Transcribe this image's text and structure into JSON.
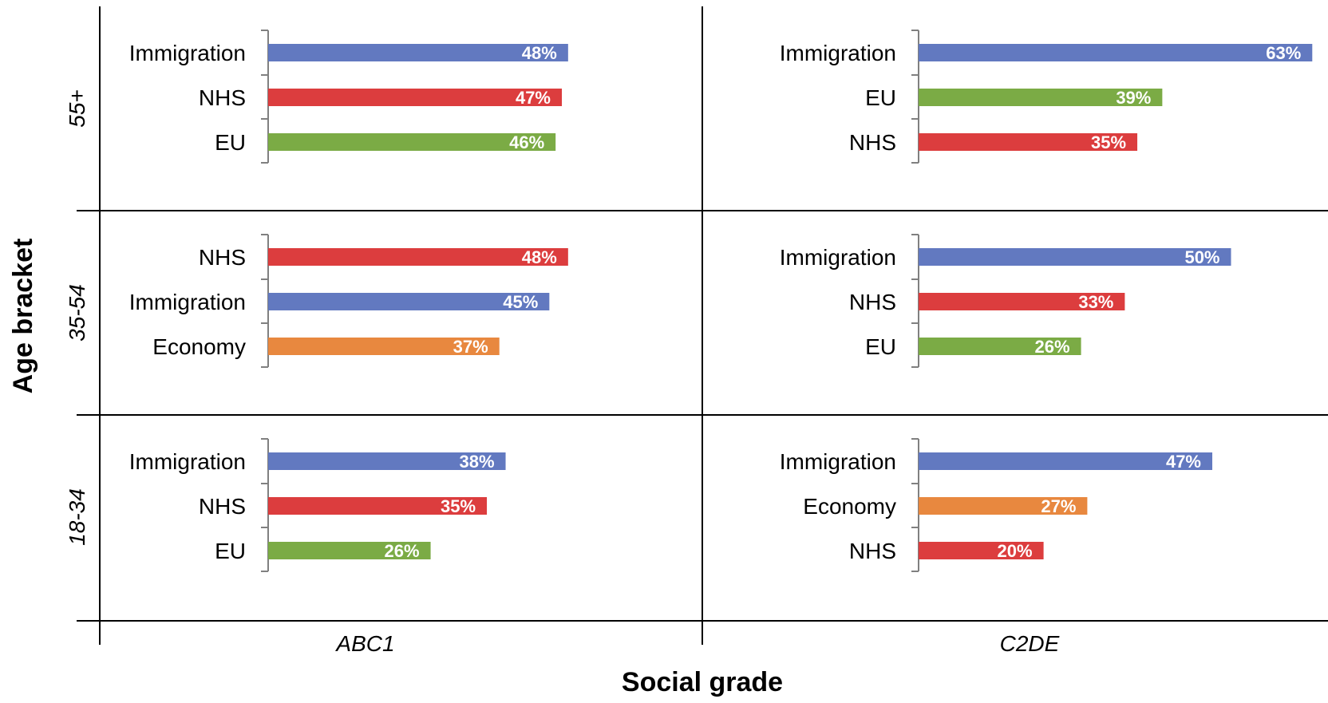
{
  "chart_data": {
    "type": "bar",
    "xlabel": "Social grade",
    "ylabel": "Age bracket",
    "columns": [
      "ABC1",
      "C2DE"
    ],
    "rows": [
      "55+",
      "35-54",
      "18-34"
    ],
    "xlim": [
      0,
      65
    ],
    "colors": {
      "Immigration": "#6279c0",
      "NHS": "#dc3d3e",
      "EU": "#7bab45",
      "Economy": "#e8883f"
    },
    "panels": [
      {
        "row": "55+",
        "column": "ABC1",
        "categories": [
          "Immigration",
          "NHS",
          "EU"
        ],
        "values": [
          48,
          47,
          46
        ],
        "labels": [
          "48%",
          "47%",
          "46%"
        ]
      },
      {
        "row": "55+",
        "column": "C2DE",
        "categories": [
          "Immigration",
          "EU",
          "NHS"
        ],
        "values": [
          63,
          39,
          35
        ],
        "labels": [
          "63%",
          "39%",
          "35%"
        ]
      },
      {
        "row": "35-54",
        "column": "ABC1",
        "categories": [
          "NHS",
          "Immigration",
          "Economy"
        ],
        "values": [
          48,
          45,
          37
        ],
        "labels": [
          "48%",
          "45%",
          "37%"
        ]
      },
      {
        "row": "35-54",
        "column": "C2DE",
        "categories": [
          "Immigration",
          "NHS",
          "EU"
        ],
        "values": [
          50,
          33,
          26
        ],
        "labels": [
          "50%",
          "33%",
          "26%"
        ]
      },
      {
        "row": "18-34",
        "column": "ABC1",
        "categories": [
          "Immigration",
          "NHS",
          "EU"
        ],
        "values": [
          38,
          35,
          26
        ],
        "labels": [
          "38%",
          "35%",
          "26%"
        ]
      },
      {
        "row": "18-34",
        "column": "C2DE",
        "categories": [
          "Immigration",
          "Economy",
          "NHS"
        ],
        "values": [
          47,
          27,
          20
        ],
        "labels": [
          "47%",
          "27%",
          "20%"
        ]
      }
    ]
  }
}
